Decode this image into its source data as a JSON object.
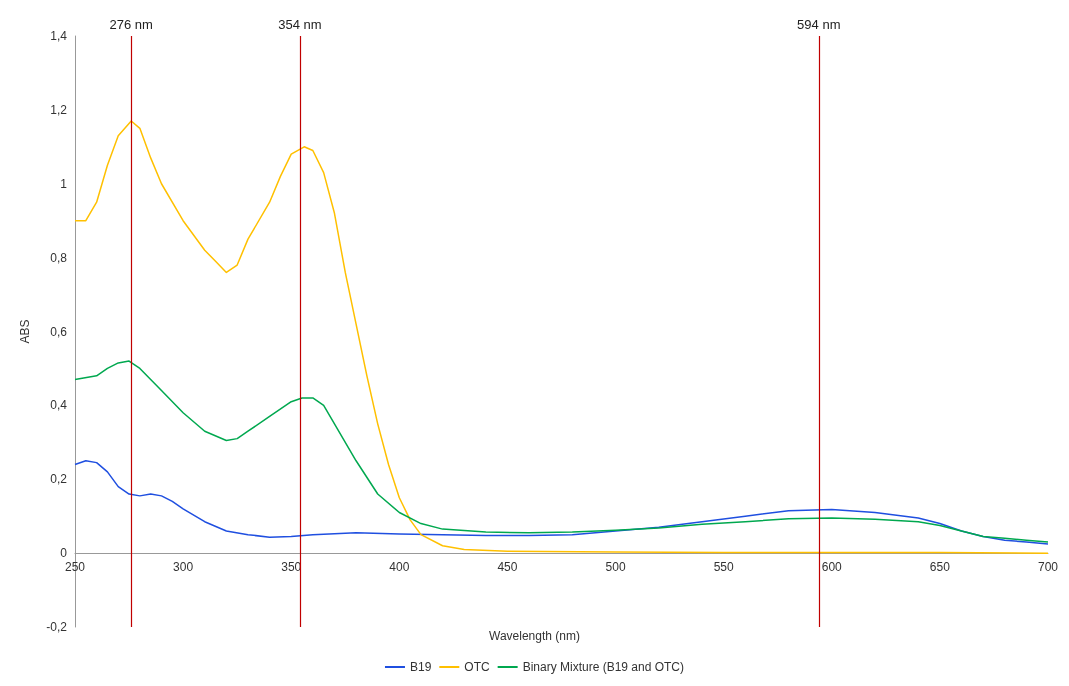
{
  "chart_data": {
    "type": "line",
    "xlabel": "Wavelength (nm)",
    "ylabel": "ABS",
    "xlim": [
      250,
      700
    ],
    "xticks": [
      250,
      300,
      350,
      400,
      450,
      500,
      550,
      600,
      650,
      700
    ],
    "ylim": [
      -0.2,
      1.4
    ],
    "yticks": [
      {
        "value": -0.2,
        "label": "-0,2"
      },
      0,
      {
        "value": 0.2,
        "label": "0,2"
      },
      {
        "value": 0.4,
        "label": "0,4"
      },
      {
        "value": 0.6,
        "label": "0,6"
      },
      {
        "value": 0.8,
        "label": "0,8"
      },
      1,
      {
        "value": 1.2,
        "label": "1,2"
      },
      {
        "value": 1.4,
        "label": "1,4"
      }
    ],
    "grid": false,
    "legend": "bottom",
    "marker": "none",
    "line_style": "solid",
    "ref_lines": [
      {
        "axis": "x",
        "value": 276,
        "label": "276 nm",
        "color": "#c00000"
      },
      {
        "axis": "x",
        "value": 354,
        "label": "354 nm",
        "color": "#c00000"
      },
      {
        "axis": "x",
        "value": 594,
        "label": "594 nm",
        "color": "#c00000"
      }
    ],
    "series": [
      {
        "name": "B19",
        "color": "#1f4fe0",
        "x": [
          250,
          255,
          260,
          265,
          270,
          275,
          280,
          285,
          290,
          295,
          300,
          310,
          320,
          330,
          340,
          350,
          360,
          380,
          400,
          420,
          440,
          460,
          480,
          500,
          520,
          540,
          560,
          580,
          600,
          620,
          640,
          650,
          660,
          670,
          680,
          690,
          700
        ],
        "values": [
          0.24,
          0.25,
          0.245,
          0.22,
          0.18,
          0.16,
          0.155,
          0.16,
          0.155,
          0.14,
          0.12,
          0.085,
          0.06,
          0.05,
          0.043,
          0.045,
          0.05,
          0.055,
          0.052,
          0.05,
          0.048,
          0.048,
          0.05,
          0.06,
          0.07,
          0.085,
          0.1,
          0.115,
          0.118,
          0.11,
          0.095,
          0.08,
          0.06,
          0.045,
          0.035,
          0.03,
          0.025
        ]
      },
      {
        "name": "OTC",
        "color": "#ffc000",
        "x": [
          250,
          255,
          260,
          265,
          270,
          276,
          280,
          285,
          290,
          300,
          310,
          315,
          320,
          325,
          330,
          340,
          345,
          350,
          356,
          360,
          365,
          370,
          375,
          380,
          385,
          390,
          395,
          400,
          405,
          410,
          420,
          430,
          450,
          500,
          550,
          600,
          650,
          700
        ],
        "values": [
          0.9,
          0.9,
          0.95,
          1.05,
          1.13,
          1.17,
          1.15,
          1.07,
          1.0,
          0.9,
          0.82,
          0.79,
          0.76,
          0.78,
          0.85,
          0.95,
          1.02,
          1.08,
          1.1,
          1.09,
          1.03,
          0.92,
          0.76,
          0.62,
          0.48,
          0.35,
          0.24,
          0.15,
          0.09,
          0.05,
          0.02,
          0.01,
          0.005,
          0.003,
          0.002,
          0.002,
          0.002,
          0
        ]
      },
      {
        "name": "Binary Mixture (B19 and OTC)",
        "color": "#00a84f",
        "x": [
          250,
          260,
          265,
          270,
          275,
          280,
          290,
          300,
          310,
          320,
          325,
          330,
          340,
          350,
          355,
          360,
          365,
          370,
          380,
          390,
          400,
          410,
          420,
          440,
          460,
          480,
          500,
          520,
          540,
          560,
          580,
          600,
          620,
          640,
          650,
          660,
          670,
          680,
          690,
          700
        ],
        "values": [
          0.47,
          0.48,
          0.5,
          0.515,
          0.52,
          0.5,
          0.44,
          0.38,
          0.33,
          0.305,
          0.31,
          0.33,
          0.37,
          0.41,
          0.42,
          0.42,
          0.4,
          0.35,
          0.25,
          0.16,
          0.11,
          0.08,
          0.065,
          0.057,
          0.055,
          0.057,
          0.062,
          0.068,
          0.078,
          0.085,
          0.093,
          0.095,
          0.092,
          0.085,
          0.075,
          0.06,
          0.045,
          0.04,
          0.035,
          0.03
        ]
      }
    ]
  }
}
